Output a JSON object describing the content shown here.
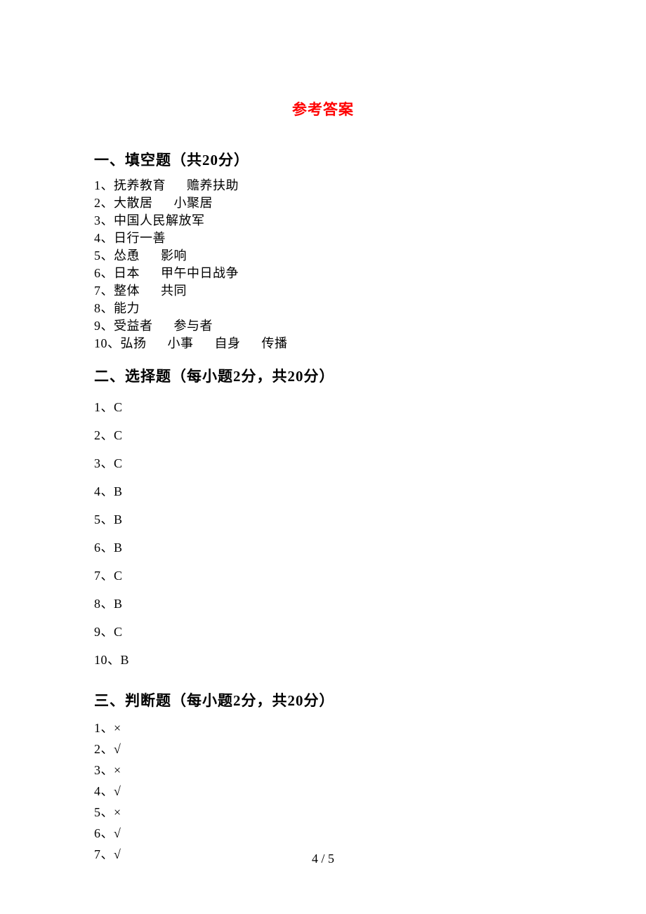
{
  "title": "参考答案",
  "sections": {
    "s1": {
      "header": "一、填空题（共20分）",
      "items": [
        {
          "num": "1、",
          "parts": [
            "抚养教育",
            "赡养扶助"
          ],
          "gap": 30
        },
        {
          "num": "2、",
          "parts": [
            "大散居",
            "小聚居"
          ],
          "gap": 30
        },
        {
          "num": "3、",
          "parts": [
            "中国人民解放军"
          ],
          "gap": 0
        },
        {
          "num": "4、",
          "parts": [
            "日行一善"
          ],
          "gap": 0
        },
        {
          "num": "5、",
          "parts": [
            "怂恿",
            "影响"
          ],
          "gap": 30
        },
        {
          "num": "6、",
          "parts": [
            "日本",
            "甲午中日战争"
          ],
          "gap": 30
        },
        {
          "num": "7、",
          "parts": [
            "整体",
            "共同"
          ],
          "gap": 30
        },
        {
          "num": "8、",
          "parts": [
            "能力"
          ],
          "gap": 0
        },
        {
          "num": "9、",
          "parts": [
            "受益者",
            "参与者"
          ],
          "gap": 30
        },
        {
          "num": "10、",
          "parts": [
            "弘扬",
            "小事",
            "自身",
            "传播"
          ],
          "gap": 30
        }
      ]
    },
    "s2": {
      "header": "二、选择题（每小题2分，共20分）",
      "items": [
        {
          "num": "1、",
          "ans": "C"
        },
        {
          "num": "2、",
          "ans": "C"
        },
        {
          "num": "3、",
          "ans": "C"
        },
        {
          "num": "4、",
          "ans": "B"
        },
        {
          "num": "5、",
          "ans": "B"
        },
        {
          "num": "6、",
          "ans": "B"
        },
        {
          "num": "7、",
          "ans": "C"
        },
        {
          "num": "8、",
          "ans": "B"
        },
        {
          "num": "9、",
          "ans": "C"
        },
        {
          "num": "10、",
          "ans": "B"
        }
      ]
    },
    "s3": {
      "header": "三、判断题（每小题2分，共20分）",
      "items": [
        {
          "num": "1、",
          "ans": "×"
        },
        {
          "num": "2、",
          "ans": "√"
        },
        {
          "num": "3、",
          "ans": "×"
        },
        {
          "num": "4、",
          "ans": "√"
        },
        {
          "num": "5、",
          "ans": "×"
        },
        {
          "num": "6、",
          "ans": "√"
        },
        {
          "num": "7、",
          "ans": "√"
        }
      ]
    }
  },
  "pageNumber": "4 / 5",
  "style": {
    "title_color": "#ff0000",
    "text_color": "#000000",
    "title_fontsize": 21,
    "header_fontsize": 21,
    "body_fontsize": 18,
    "background": "#ffffff"
  }
}
